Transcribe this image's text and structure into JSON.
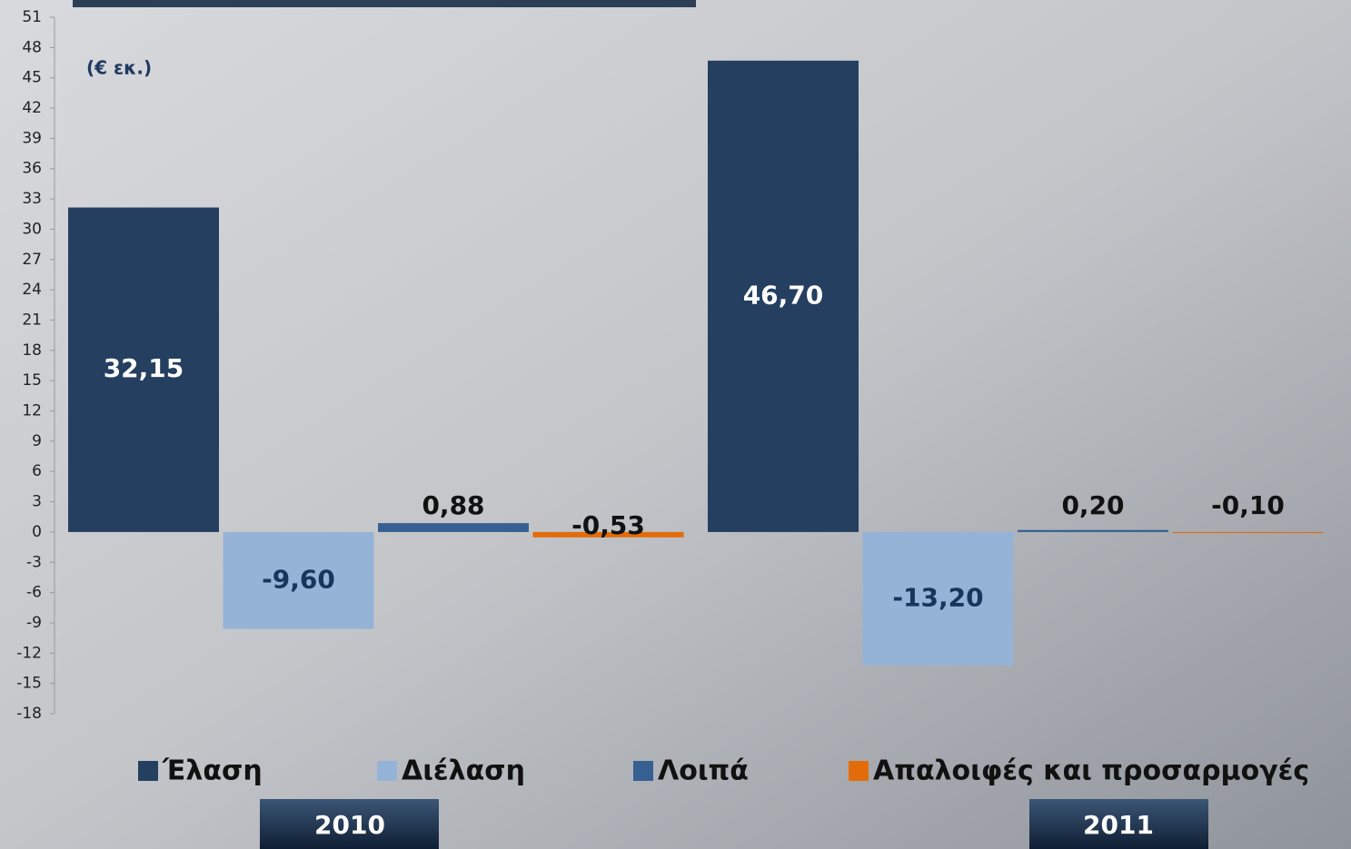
{
  "chart_data": {
    "type": "bar",
    "unit_label": "(€ εκ.)",
    "categories": [
      "2010",
      "2011"
    ],
    "series": [
      {
        "name": "Έλαση",
        "color": "#243f60",
        "values": [
          32.15,
          46.7
        ],
        "value_labels": [
          "32,15",
          "46,70"
        ]
      },
      {
        "name": "Διέλαση",
        "color": "#95b3d7",
        "values": [
          -9.6,
          -13.2
        ],
        "value_labels": [
          "-9,60",
          "-13,20"
        ]
      },
      {
        "name": "Λοιπά",
        "color": "#366092",
        "values": [
          0.88,
          0.2
        ],
        "value_labels": [
          "0,88",
          "0,20"
        ]
      },
      {
        "name": "Απαλοιφές και προσαρμογές",
        "color": "#e36c0a",
        "values": [
          -0.53,
          -0.1
        ],
        "value_labels": [
          "-0,53",
          "-0,10"
        ]
      }
    ],
    "ylim": [
      -18,
      51
    ],
    "yticks": [
      -18,
      -15,
      -12,
      -9,
      -6,
      -3,
      0,
      3,
      6,
      9,
      12,
      15,
      18,
      21,
      24,
      27,
      30,
      33,
      36,
      39,
      42,
      45,
      48,
      51
    ]
  }
}
